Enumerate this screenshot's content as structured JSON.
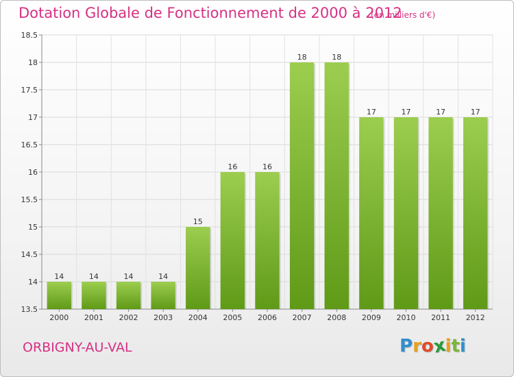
{
  "header": {
    "title": "Dotation Globale de Fonctionnement de 2000 à 2012",
    "subtitle": "(en milliers d'€)"
  },
  "footer": {
    "commune": "ORBIGNY-AU-VAL",
    "logo_letters": [
      "P",
      "r",
      "o",
      "x",
      "i",
      "t",
      "i"
    ],
    "logo_colors": [
      "#2f8fd1",
      "#e8a020",
      "#e04a2a",
      "#2a9a3a",
      "#e8a020",
      "#7ab73a",
      "#2f8fd1"
    ]
  },
  "colors": {
    "bar_top": "#9ccd4f",
    "bar_bottom": "#5f9a17",
    "accent": "#d63083"
  },
  "chart_data": {
    "type": "bar",
    "categories": [
      "2000",
      "2001",
      "2002",
      "2003",
      "2004",
      "2005",
      "2006",
      "2007",
      "2008",
      "2009",
      "2010",
      "2011",
      "2012"
    ],
    "values": [
      14,
      14,
      14,
      14,
      15,
      16,
      16,
      18,
      18,
      17,
      17,
      17,
      17
    ],
    "data_labels": [
      "14",
      "14",
      "14",
      "14",
      "15",
      "16",
      "16",
      "18",
      "18",
      "17",
      "17",
      "17",
      "17"
    ],
    "ylim": [
      13.5,
      18.5
    ],
    "yticks": [
      13.5,
      14,
      14.5,
      15,
      15.5,
      16,
      16.5,
      17,
      17.5,
      18,
      18.5
    ],
    "ytick_labels": [
      "13.5",
      "14",
      "14.5",
      "15",
      "15.5",
      "16",
      "16.5",
      "17",
      "17.5",
      "18",
      "18.5"
    ],
    "xlabel": "",
    "ylabel": "",
    "grid": true
  }
}
